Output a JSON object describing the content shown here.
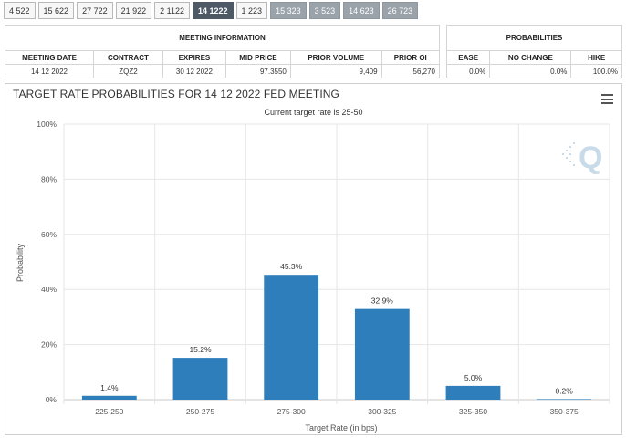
{
  "tabs": [
    {
      "label": "4 522",
      "state": "normal"
    },
    {
      "label": "15 622",
      "state": "normal"
    },
    {
      "label": "27 722",
      "state": "normal"
    },
    {
      "label": "21 922",
      "state": "normal"
    },
    {
      "label": "2 1122",
      "state": "normal"
    },
    {
      "label": "14 1222",
      "state": "active"
    },
    {
      "label": "1 223",
      "state": "normal"
    },
    {
      "label": "15 323",
      "state": "future"
    },
    {
      "label": "3 523",
      "state": "future"
    },
    {
      "label": "14 623",
      "state": "future"
    },
    {
      "label": "26 723",
      "state": "future"
    }
  ],
  "meeting_info": {
    "heading": "MEETING INFORMATION",
    "headers": [
      "MEETING DATE",
      "CONTRACT",
      "EXPIRES",
      "MID PRICE",
      "PRIOR VOLUME",
      "PRIOR OI"
    ],
    "values": [
      "14 12 2022",
      "ZQZ2",
      "30 12 2022",
      "97.3550",
      "9,409",
      "56,270"
    ]
  },
  "probabilities": {
    "heading": "PROBABILITIES",
    "headers": [
      "EASE",
      "NO CHANGE",
      "HIKE"
    ],
    "values": [
      "0.0%",
      "0.0%",
      "100.0%"
    ]
  },
  "colors": {
    "bar": "#2e7ebb",
    "active_tab": "#4d5a66",
    "future_tab": "#9ba3aa"
  },
  "chart_data": {
    "type": "bar",
    "title": "TARGET RATE PROBABILITIES FOR 14 12 2022 FED MEETING",
    "subtitle": "Current target rate is 25-50",
    "xlabel": "Target Rate (in bps)",
    "ylabel": "Probability",
    "categories": [
      "225-250",
      "250-275",
      "275-300",
      "300-325",
      "325-350",
      "350-375"
    ],
    "values": [
      1.4,
      15.2,
      45.3,
      32.9,
      5.0,
      0.2
    ],
    "data_labels": [
      "1.4%",
      "15.2%",
      "45.3%",
      "32.9%",
      "5.0%",
      "0.2%"
    ],
    "yticks": [
      0,
      20,
      40,
      60,
      80,
      100
    ],
    "ytick_labels": [
      "0%",
      "20%",
      "40%",
      "60%",
      "80%",
      "100%"
    ],
    "ylim": [
      0,
      100
    ],
    "grid": true
  }
}
